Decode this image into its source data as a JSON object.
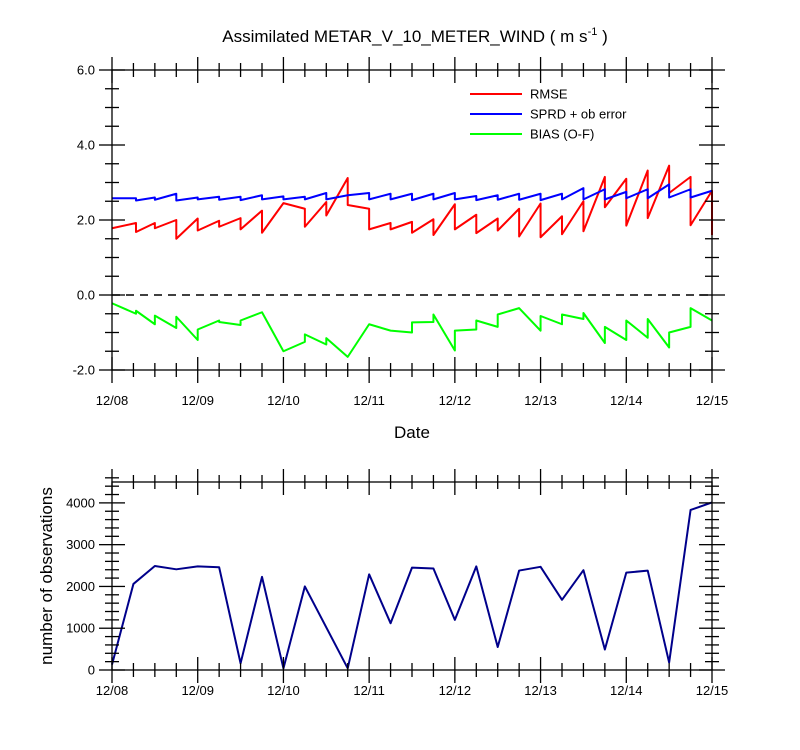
{
  "chart_data": [
    {
      "type": "line",
      "title": "Assimilated METAR_V_10_METER_WIND",
      "title_units_base": "( m s",
      "title_units_exp": "-1",
      "title_units_close": " )",
      "xlabel": "Date",
      "ylabel": "",
      "xlim": [
        0,
        7
      ],
      "ylim": [
        -2.0,
        6.0
      ],
      "x_tick_labels": [
        "12/08",
        "12/09",
        "12/10",
        "12/11",
        "12/12",
        "12/13",
        "12/14",
        "12/15"
      ],
      "y_ticks": [
        -2.0,
        0.0,
        2.0,
        4.0,
        6.0
      ],
      "y_tick_labels": [
        "-2.0",
        "0.0",
        "2.0",
        "4.0",
        "6.0"
      ],
      "zero_line": "dashed",
      "legend_position": "top-right",
      "series": [
        {
          "name": "RMSE",
          "color": "#ff0000",
          "points": [
            [
              0.0,
              1.78
            ],
            [
              0.28,
              1.92
            ],
            [
              0.28,
              1.68
            ],
            [
              0.5,
              1.92
            ],
            [
              0.5,
              1.78
            ],
            [
              0.75,
              2.0
            ],
            [
              0.75,
              1.5
            ],
            [
              1.0,
              2.04
            ],
            [
              1.0,
              1.72
            ],
            [
              1.25,
              1.98
            ],
            [
              1.25,
              1.82
            ],
            [
              1.5,
              2.05
            ],
            [
              1.5,
              1.75
            ],
            [
              1.75,
              2.25
            ],
            [
              1.75,
              1.66
            ],
            [
              2.0,
              2.45
            ],
            [
              2.25,
              2.3
            ],
            [
              2.25,
              1.82
            ],
            [
              2.5,
              2.48
            ],
            [
              2.5,
              2.12
            ],
            [
              2.75,
              3.12
            ],
            [
              2.75,
              2.4
            ],
            [
              3.0,
              2.3
            ],
            [
              3.0,
              1.75
            ],
            [
              3.25,
              1.92
            ],
            [
              3.25,
              1.75
            ],
            [
              3.5,
              1.95
            ],
            [
              3.5,
              1.66
            ],
            [
              3.75,
              2.02
            ],
            [
              3.75,
              1.6
            ],
            [
              4.0,
              2.42
            ],
            [
              4.0,
              1.75
            ],
            [
              4.25,
              2.14
            ],
            [
              4.25,
              1.65
            ],
            [
              4.5,
              2.04
            ],
            [
              4.5,
              1.72
            ],
            [
              4.75,
              2.3
            ],
            [
              4.75,
              1.56
            ],
            [
              5.0,
              2.44
            ],
            [
              5.0,
              1.54
            ],
            [
              5.25,
              2.1
            ],
            [
              5.25,
              1.62
            ],
            [
              5.5,
              2.5
            ],
            [
              5.5,
              1.7
            ],
            [
              5.75,
              3.15
            ],
            [
              5.75,
              2.34
            ],
            [
              6.0,
              3.1
            ],
            [
              6.0,
              1.85
            ],
            [
              6.25,
              3.32
            ],
            [
              6.25,
              2.05
            ],
            [
              6.5,
              3.45
            ],
            [
              6.5,
              2.72
            ],
            [
              6.75,
              3.15
            ],
            [
              6.75,
              1.86
            ],
            [
              7.0,
              2.78
            ],
            [
              7.0,
              1.6
            ]
          ]
        },
        {
          "name": "SPRD + ob error",
          "color": "#0000ff",
          "points": [
            [
              0.0,
              2.58
            ],
            [
              0.28,
              2.58
            ],
            [
              0.28,
              2.52
            ],
            [
              0.5,
              2.6
            ],
            [
              0.5,
              2.54
            ],
            [
              0.75,
              2.7
            ],
            [
              0.75,
              2.52
            ],
            [
              1.0,
              2.6
            ],
            [
              1.0,
              2.55
            ],
            [
              1.25,
              2.62
            ],
            [
              1.25,
              2.54
            ],
            [
              1.5,
              2.62
            ],
            [
              1.5,
              2.53
            ],
            [
              1.75,
              2.66
            ],
            [
              1.75,
              2.55
            ],
            [
              2.0,
              2.63
            ],
            [
              2.0,
              2.55
            ],
            [
              2.25,
              2.62
            ],
            [
              2.25,
              2.55
            ],
            [
              2.5,
              2.72
            ],
            [
              2.5,
              2.55
            ],
            [
              2.75,
              2.66
            ],
            [
              3.0,
              2.72
            ],
            [
              3.0,
              2.55
            ],
            [
              3.25,
              2.7
            ],
            [
              3.25,
              2.55
            ],
            [
              3.5,
              2.7
            ],
            [
              3.5,
              2.53
            ],
            [
              3.75,
              2.7
            ],
            [
              3.75,
              2.55
            ],
            [
              4.0,
              2.72
            ],
            [
              4.0,
              2.55
            ],
            [
              4.25,
              2.64
            ],
            [
              4.25,
              2.53
            ],
            [
              4.5,
              2.66
            ],
            [
              4.5,
              2.54
            ],
            [
              4.75,
              2.7
            ],
            [
              4.75,
              2.54
            ],
            [
              5.0,
              2.7
            ],
            [
              5.0,
              2.53
            ],
            [
              5.25,
              2.7
            ],
            [
              5.25,
              2.55
            ],
            [
              5.5,
              2.85
            ],
            [
              5.5,
              2.55
            ],
            [
              5.75,
              2.82
            ],
            [
              5.75,
              2.55
            ],
            [
              6.0,
              2.75
            ],
            [
              6.0,
              2.58
            ],
            [
              6.25,
              2.82
            ],
            [
              6.25,
              2.58
            ],
            [
              6.5,
              2.95
            ],
            [
              6.5,
              2.6
            ],
            [
              6.75,
              2.82
            ],
            [
              6.75,
              2.6
            ],
            [
              7.0,
              2.78
            ]
          ]
        },
        {
          "name": "BIAS (O-F)",
          "color": "#00ff00",
          "points": [
            [
              0.0,
              -0.22
            ],
            [
              0.28,
              -0.5
            ],
            [
              0.28,
              -0.42
            ],
            [
              0.5,
              -0.78
            ],
            [
              0.5,
              -0.55
            ],
            [
              0.75,
              -0.88
            ],
            [
              0.75,
              -0.58
            ],
            [
              1.0,
              -1.2
            ],
            [
              1.0,
              -0.92
            ],
            [
              1.25,
              -0.68
            ],
            [
              1.25,
              -0.72
            ],
            [
              1.5,
              -0.8
            ],
            [
              1.5,
              -0.68
            ],
            [
              1.75,
              -0.46
            ],
            [
              2.0,
              -1.5
            ],
            [
              2.25,
              -1.25
            ],
            [
              2.25,
              -1.05
            ],
            [
              2.5,
              -1.32
            ],
            [
              2.5,
              -1.15
            ],
            [
              2.75,
              -1.65
            ],
            [
              3.0,
              -0.78
            ],
            [
              3.25,
              -0.95
            ],
            [
              3.5,
              -1.0
            ],
            [
              3.5,
              -0.73
            ],
            [
              3.75,
              -0.72
            ],
            [
              3.75,
              -0.52
            ],
            [
              4.0,
              -1.48
            ],
            [
              4.0,
              -0.95
            ],
            [
              4.25,
              -0.92
            ],
            [
              4.25,
              -0.68
            ],
            [
              4.5,
              -0.85
            ],
            [
              4.5,
              -0.52
            ],
            [
              4.75,
              -0.35
            ],
            [
              5.0,
              -0.95
            ],
            [
              5.0,
              -0.56
            ],
            [
              5.25,
              -0.78
            ],
            [
              5.25,
              -0.52
            ],
            [
              5.5,
              -0.64
            ],
            [
              5.5,
              -0.48
            ],
            [
              5.75,
              -1.28
            ],
            [
              5.75,
              -0.85
            ],
            [
              6.0,
              -1.2
            ],
            [
              6.0,
              -0.68
            ],
            [
              6.25,
              -1.14
            ],
            [
              6.25,
              -0.64
            ],
            [
              6.5,
              -1.4
            ],
            [
              6.5,
              -1.0
            ],
            [
              6.75,
              -0.85
            ],
            [
              6.75,
              -0.35
            ],
            [
              7.0,
              -0.68
            ]
          ]
        }
      ]
    },
    {
      "type": "line",
      "title": "",
      "xlabel": "",
      "ylabel": "number of observations",
      "xlim": [
        0,
        7
      ],
      "ylim": [
        0,
        4500
      ],
      "x_tick_labels": [
        "12/08",
        "12/09",
        "12/10",
        "12/11",
        "12/12",
        "12/13",
        "12/14",
        "12/15"
      ],
      "y_ticks": [
        0,
        1000,
        2000,
        3000,
        4000
      ],
      "y_tick_labels": [
        "0",
        "1000",
        "2000",
        "3000",
        "4000"
      ],
      "series": [
        {
          "name": "number of observations",
          "color": "#00008b",
          "points": [
            [
              0.0,
              130
            ],
            [
              0.25,
              2060
            ],
            [
              0.5,
              2490
            ],
            [
              0.75,
              2410
            ],
            [
              1.0,
              2480
            ],
            [
              1.25,
              2460
            ],
            [
              1.5,
              160
            ],
            [
              1.75,
              2230
            ],
            [
              2.0,
              40
            ],
            [
              2.25,
              2000
            ],
            [
              2.75,
              40
            ],
            [
              3.0,
              2290
            ],
            [
              3.25,
              1120
            ],
            [
              3.5,
              2450
            ],
            [
              3.75,
              2430
            ],
            [
              4.0,
              1200
            ],
            [
              4.25,
              2480
            ],
            [
              4.5,
              550
            ],
            [
              4.75,
              2380
            ],
            [
              5.0,
              2470
            ],
            [
              5.25,
              1680
            ],
            [
              5.5,
              2390
            ],
            [
              5.75,
              490
            ],
            [
              6.0,
              2330
            ],
            [
              6.25,
              2380
            ],
            [
              6.5,
              180
            ],
            [
              6.75,
              3830
            ],
            [
              7.0,
              4010
            ]
          ]
        }
      ]
    }
  ]
}
